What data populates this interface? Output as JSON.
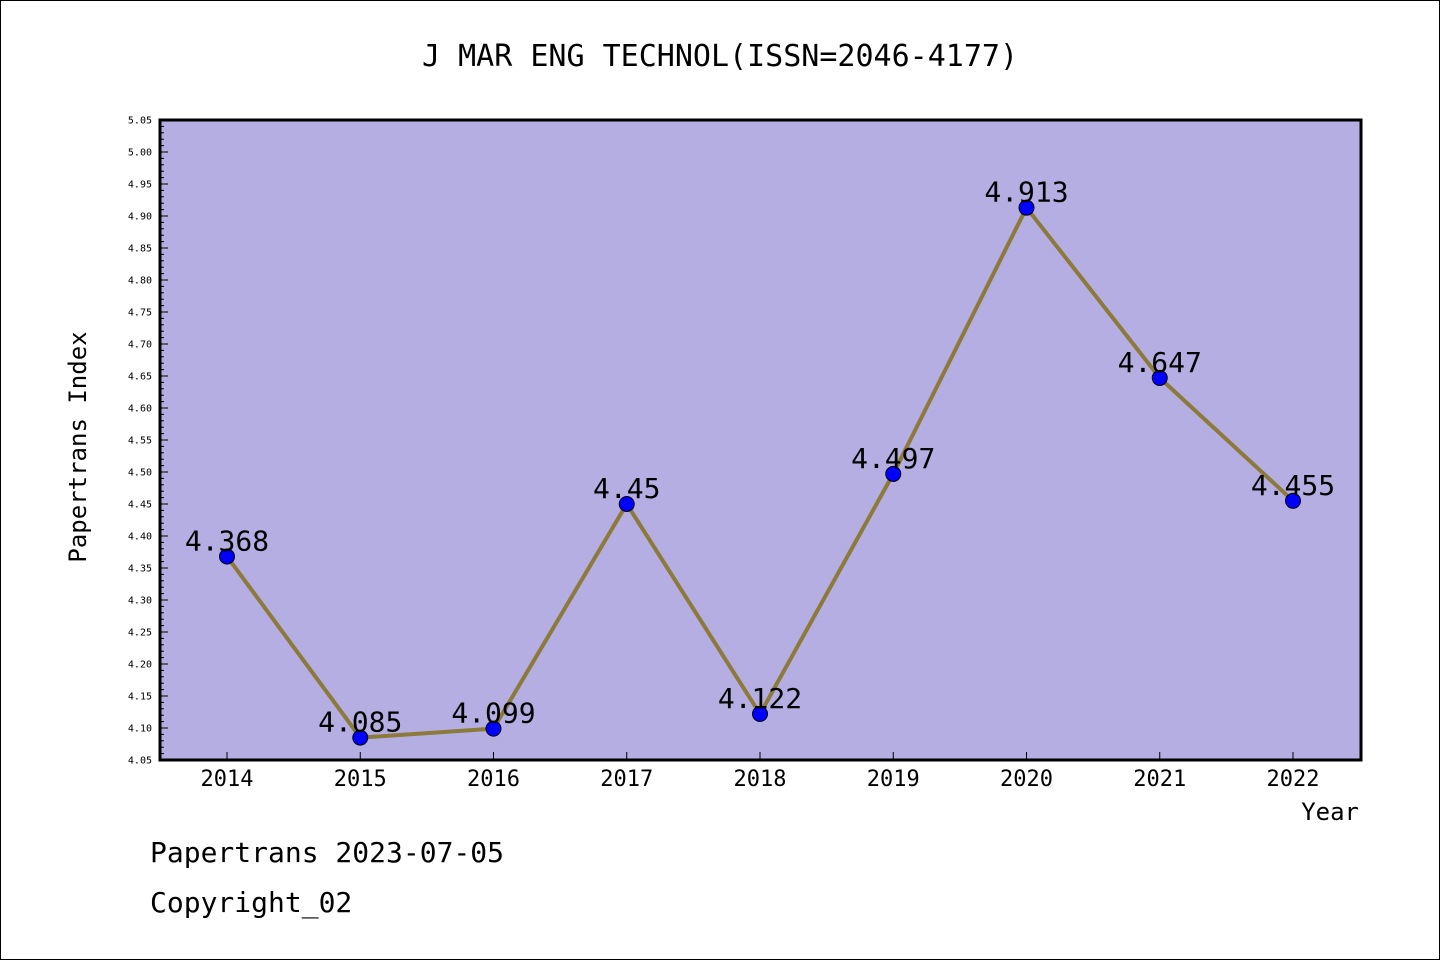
{
  "chart_data": {
    "type": "line",
    "title": "J MAR ENG TECHNOL(ISSN=2046-4177)",
    "xlabel": "Year",
    "ylabel": "Papertrans Index",
    "categories": [
      "2014",
      "2015",
      "2016",
      "2017",
      "2018",
      "2019",
      "2020",
      "2021",
      "2022"
    ],
    "values": [
      4.368,
      4.085,
      4.099,
      4.45,
      4.122,
      4.497,
      4.913,
      4.647,
      4.455
    ],
    "data_labels": [
      "4.368",
      "4.085",
      "4.099",
      "4.45",
      "4.122",
      "4.497",
      "4.913",
      "4.647",
      "4.455"
    ],
    "ylim": [
      4.05,
      5.05
    ],
    "y_ticks": [
      "4.05",
      "4.10",
      "4.15",
      "4.20",
      "4.25",
      "4.30",
      "4.35",
      "4.40",
      "4.45",
      "4.50",
      "4.55",
      "4.60",
      "4.65",
      "4.70",
      "4.75",
      "4.80",
      "4.85",
      "4.90",
      "4.95",
      "5.00",
      "5.05"
    ],
    "grid": false,
    "colors": {
      "plot_background": "#b5aee2",
      "line": "#8b7a3a",
      "marker": "#0000ff"
    }
  },
  "footer": {
    "line1": "Papertrans 2023-07-05",
    "line2": "Copyright_02"
  }
}
